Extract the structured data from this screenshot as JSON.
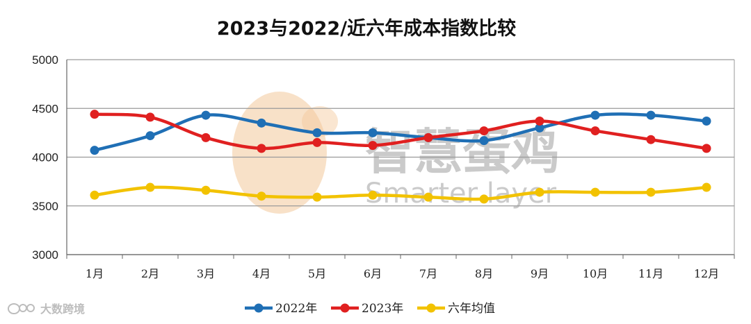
{
  "chart_data": {
    "type": "line",
    "title": "2023与2022/近六年成本指数比较",
    "categories": [
      "1月",
      "2月",
      "3月",
      "4月",
      "5月",
      "6月",
      "7月",
      "8月",
      "9月",
      "10月",
      "11月",
      "12月"
    ],
    "ylim": [
      3000,
      5000
    ],
    "yticks": [
      "3000",
      "3500",
      "4000",
      "4500",
      "5000"
    ],
    "grid": true,
    "legend_position": "bottom",
    "series": [
      {
        "name": "2022年",
        "color": "#1f6fb5",
        "values": [
          4070,
          4220,
          4430,
          4350,
          4250,
          4250,
          4200,
          4170,
          4300,
          4430,
          4430,
          4370
        ]
      },
      {
        "name": "2023年",
        "color": "#e02020",
        "values": [
          4440,
          4410,
          4200,
          4090,
          4150,
          4120,
          4200,
          4270,
          4370,
          4270,
          4180,
          4090
        ]
      },
      {
        "name": "六年均值",
        "color": "#f2c200",
        "values": [
          3610,
          3690,
          3660,
          3600,
          3590,
          3610,
          3590,
          3570,
          3640,
          3640,
          3640,
          3690
        ]
      }
    ]
  },
  "watermark": {
    "cn": "智慧蛋鸡",
    "en": "Smarter layer"
  },
  "corner_label": "大数跨境"
}
